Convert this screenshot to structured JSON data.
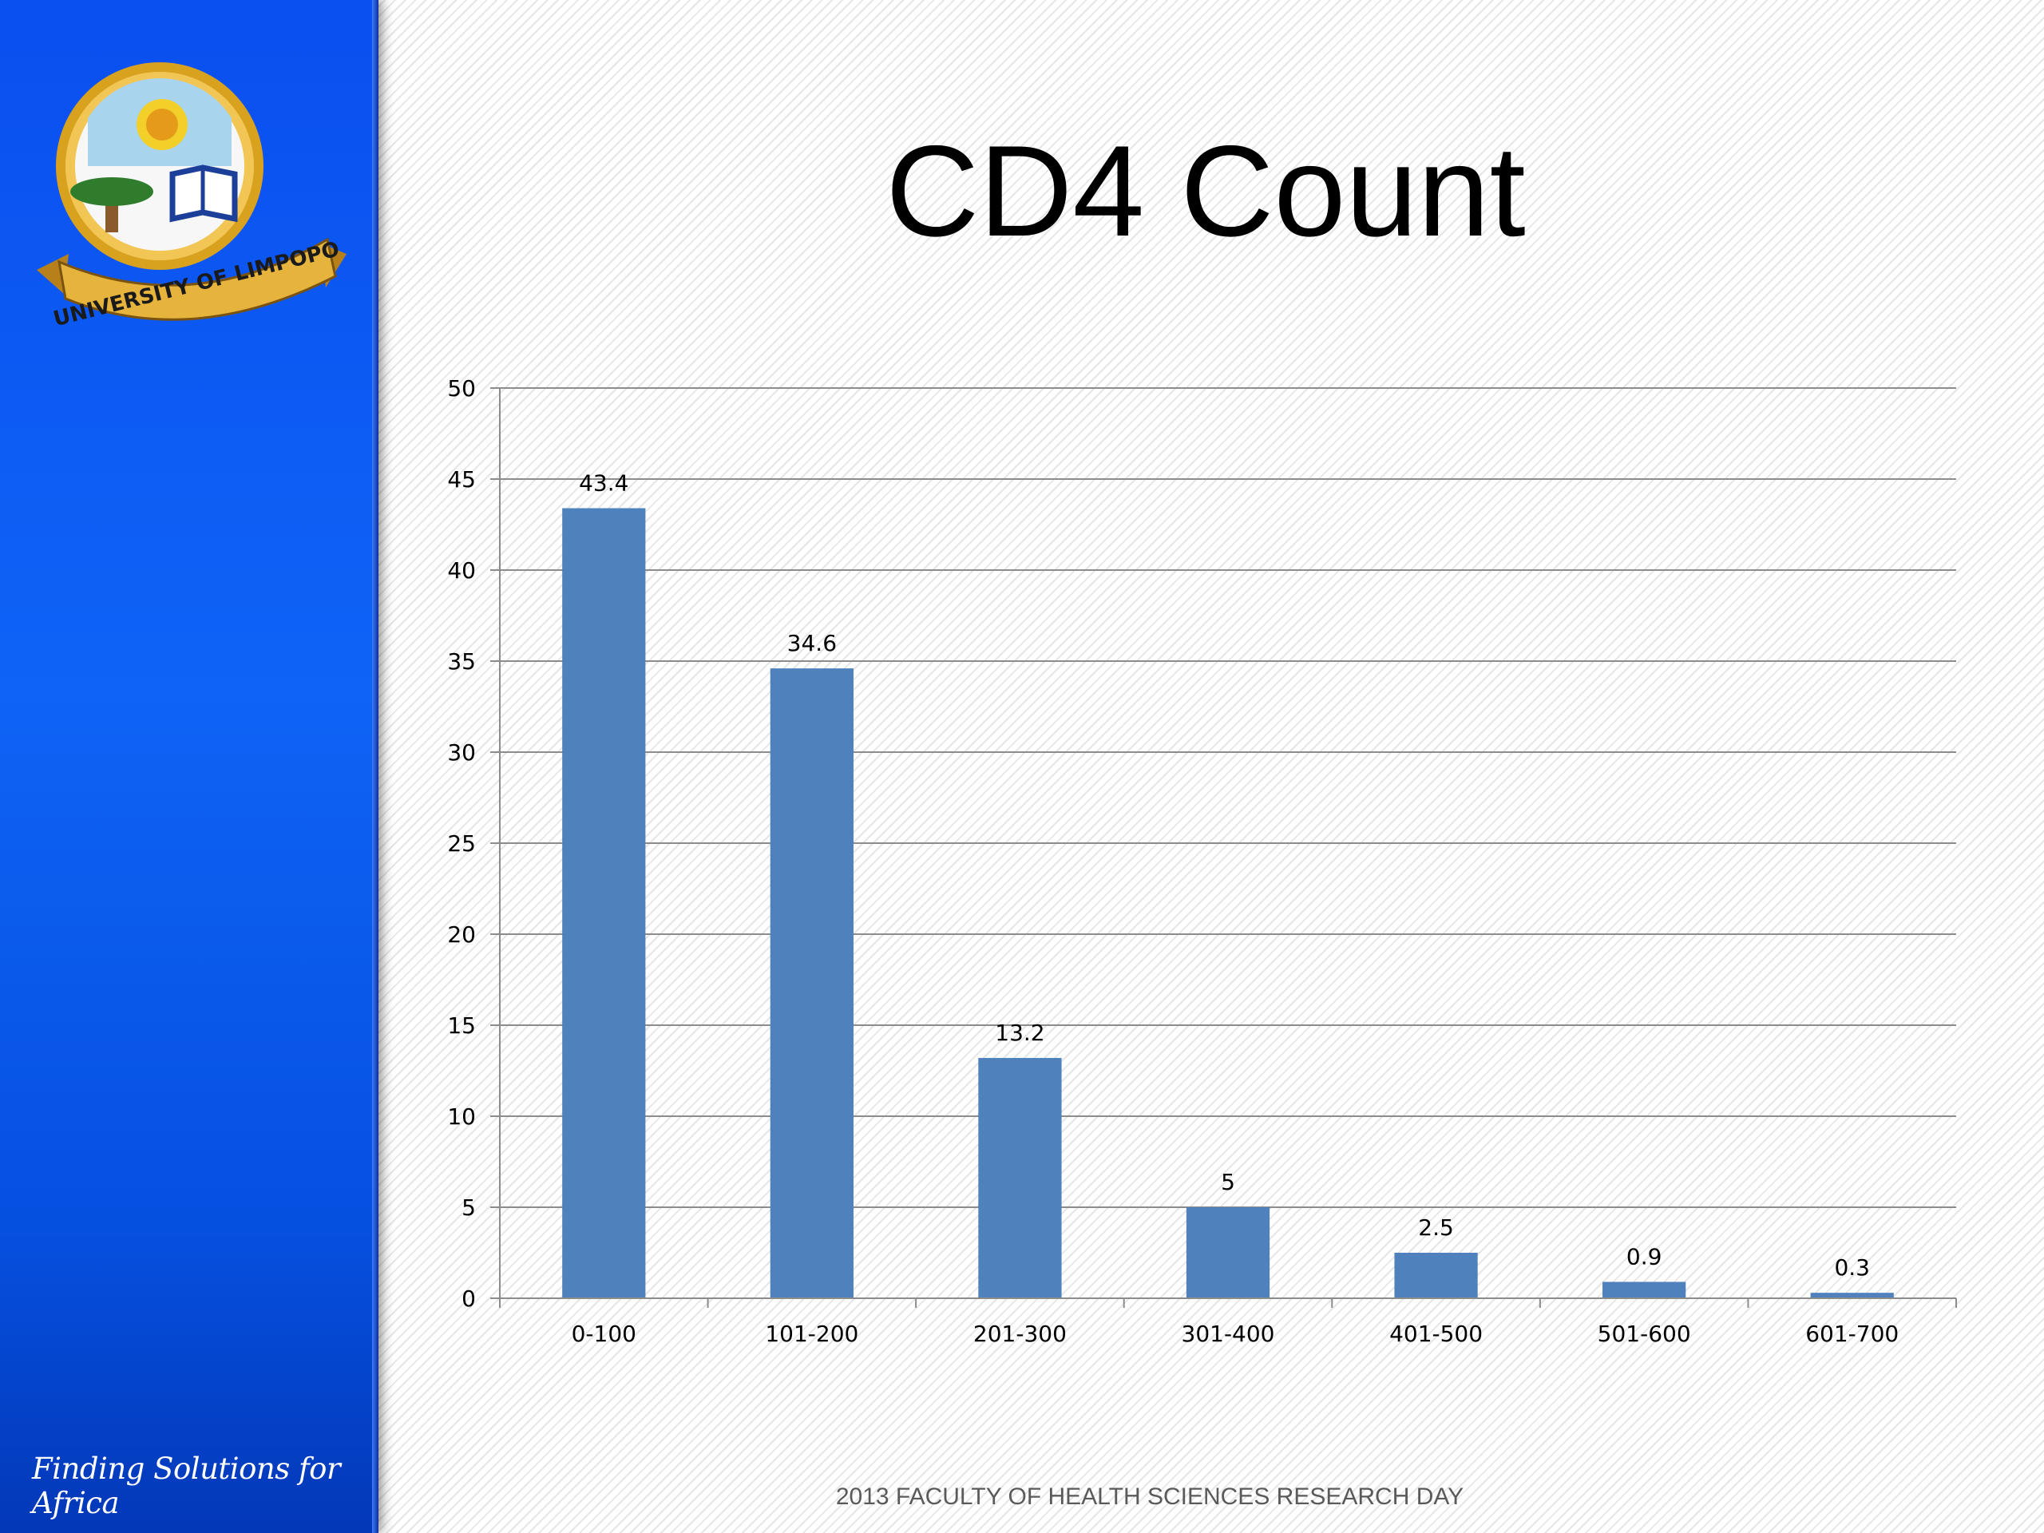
{
  "slide": {
    "title": "CD4 Count",
    "tagline": "Finding Solutions for Africa",
    "footer": "2013 FACULTY OF HEALTH SCIENCES RESEARCH DAY",
    "logo_text": "UNIVERSITY OF LIMPOPO"
  },
  "colors": {
    "sidebar": "#0a55f0",
    "bar": "#4f81bd",
    "gridline": "#8c8c8c",
    "logo_gold": "#d9a21e"
  },
  "chart_data": {
    "type": "bar",
    "title": "",
    "xlabel": "",
    "ylabel": "",
    "categories": [
      "0-100",
      "101-200",
      "201-300",
      "301-400",
      "401-500",
      "501-600",
      "601-700"
    ],
    "values": [
      43.4,
      34.6,
      13.2,
      5,
      2.5,
      0.9,
      0.3
    ],
    "value_labels": [
      "43.4",
      "34.6",
      "13.2",
      "5",
      "2.5",
      "0.9",
      "0.3"
    ],
    "ylim": [
      0,
      50
    ],
    "yticks": [
      0,
      5,
      10,
      15,
      20,
      25,
      30,
      35,
      40,
      45,
      50
    ],
    "grid": true,
    "legend": "none"
  }
}
